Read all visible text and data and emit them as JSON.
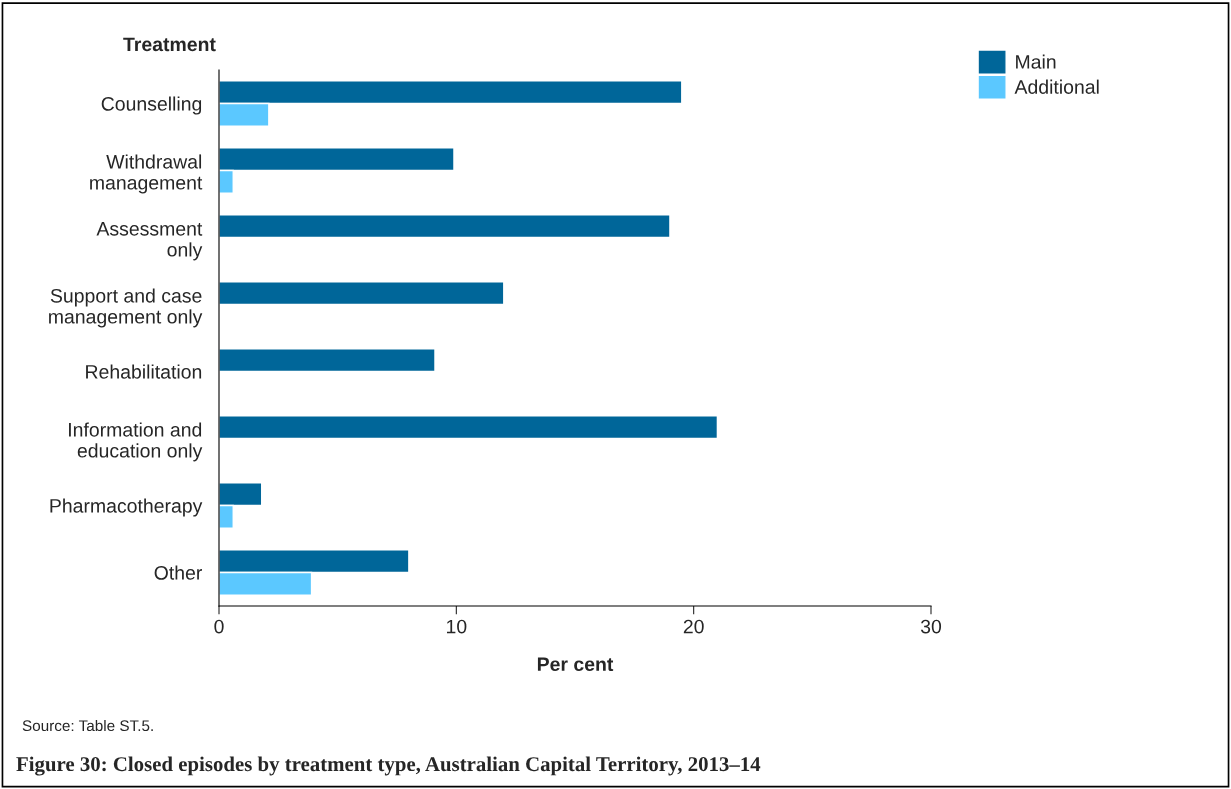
{
  "chart_data": {
    "type": "bar",
    "orientation": "horizontal",
    "title": "Figure 30: Closed episodes by treatment type, Australian Capital Territory, 2013–14",
    "xlabel": "Per cent",
    "ylabel": "Treatment",
    "categories": [
      "Counselling",
      "Withdrawal\nmanagement",
      "Assessment\nonly",
      "Support and case\nmanagement only",
      "Rehabilitation",
      "Information and\neducation only",
      "Pharmacotherapy",
      "Other"
    ],
    "series": [
      {
        "name": "Main",
        "color": "#006699",
        "values": [
          19.5,
          9.9,
          19.0,
          12.0,
          9.1,
          21.0,
          1.8,
          8.0
        ]
      },
      {
        "name": "Additional",
        "color": "#5bc8ff",
        "values": [
          2.1,
          0.6,
          null,
          null,
          null,
          null,
          0.6,
          3.9
        ]
      }
    ],
    "xlim": [
      0,
      30
    ],
    "xticks": [
      0,
      10,
      20,
      30
    ],
    "grid": false,
    "legend": "top right",
    "annotations": [
      "Source: Table ST.5."
    ]
  }
}
